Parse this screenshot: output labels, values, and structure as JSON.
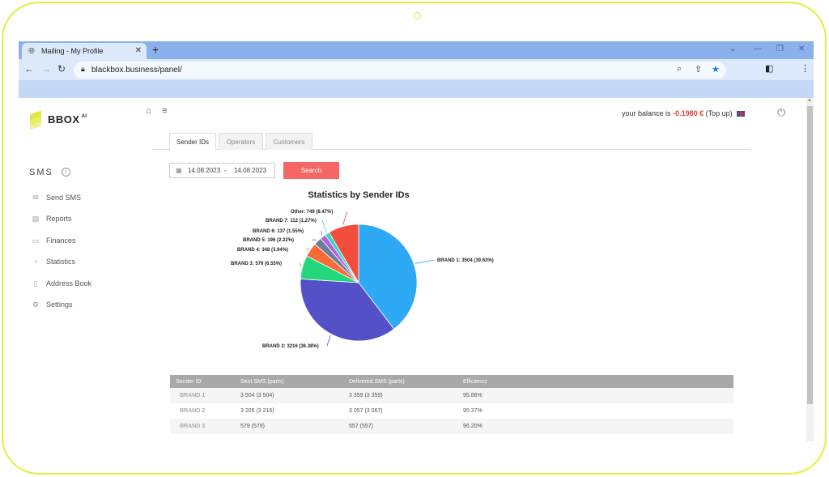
{
  "browser": {
    "tab_title": "Mailing - My Profile",
    "url": "blackbox.business/panel/"
  },
  "logo": {
    "text": "BBOX",
    "sup": "AI"
  },
  "balance": {
    "prefix": "your balance is",
    "amount": "-0.1980 €",
    "topup": "(Top up)"
  },
  "sidebar": {
    "section": "SMS",
    "items": [
      {
        "label": "Send SMS",
        "icon": "envelope-icon"
      },
      {
        "label": "Reports",
        "icon": "document-icon"
      },
      {
        "label": "Finances",
        "icon": "wallet-icon"
      },
      {
        "label": "Statistics",
        "icon": "pie-chart-icon"
      },
      {
        "label": "Address Book",
        "icon": "book-icon"
      },
      {
        "label": "Settings",
        "icon": "gear-icon"
      }
    ]
  },
  "tabs": [
    {
      "label": "Sender IDs",
      "active": true
    },
    {
      "label": "Operators",
      "active": false
    },
    {
      "label": "Customers",
      "active": false
    }
  ],
  "filter": {
    "date_from": "14.08.2023",
    "separator": "-",
    "date_to": "14.08.2023",
    "search_label": "Search"
  },
  "chart_data": {
    "type": "pie",
    "title": "Statistics by Sender IDs",
    "slices": [
      {
        "name": "BRAND 1",
        "value": 3504,
        "percent": 39.63,
        "label": "BRAND 1: 3504 (39.63%)",
        "color": "#2eaaf5"
      },
      {
        "name": "BRAND 2",
        "value": 3216,
        "percent": 36.38,
        "label": "BRAND 2: 3216 (36.38%)",
        "color": "#5450c8"
      },
      {
        "name": "BRAND 3",
        "value": 579,
        "percent": 6.55,
        "label": "BRAND 3: 579 (6.55%)",
        "color": "#22d87a"
      },
      {
        "name": "BRAND 4",
        "value": 348,
        "percent": 3.94,
        "label": "BRAND 4: 348 (3.94%)",
        "color": "#f96a39"
      },
      {
        "name": "BRAND 5",
        "value": 196,
        "percent": 2.22,
        "label": "BRAND 5: 196 (2.22%)",
        "color": "#6d7f96"
      },
      {
        "name": "BRAND 6",
        "value": 137,
        "percent": 1.55,
        "label": "BRAND 6: 137 (1.55%)",
        "color": "#b35fe0"
      },
      {
        "name": "BRAND 7",
        "value": 112,
        "percent": 1.27,
        "label": "BRAND 7: 112 (1.27%)",
        "color": "#2fd9c4"
      },
      {
        "name": "Other",
        "value": 749,
        "percent": 8.47,
        "label": "Other: 749 (8.47%)",
        "color": "#f24d3d"
      }
    ]
  },
  "table": {
    "headers": [
      "Sender ID",
      "Sent SMS (parts)",
      "Delivered SMS (parts)",
      "Efficiency"
    ],
    "rows": [
      [
        "BRAND 1",
        "3 504 (3 504)",
        "3 359 (3 359)",
        "95.86%"
      ],
      [
        "BRAND 2",
        "3 205 (3 216)",
        "3 057 (3 067)",
        "95.37%"
      ],
      [
        "BRAND 3",
        "579 (579)",
        "557 (557)",
        "96.20%"
      ]
    ]
  }
}
